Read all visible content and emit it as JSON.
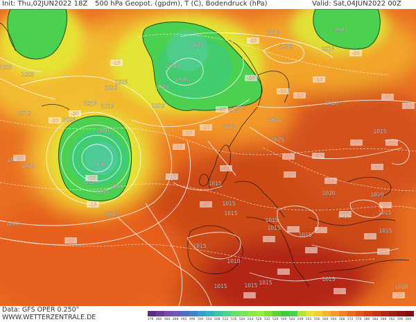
{
  "header": {
    "init": "Init: Thu,02JUN2022 18Z",
    "title": "500 hPa Geopot. (gpdm), T (C), Bodendruck (hPa)",
    "valid": "Valid: Sat,04JUN2022 00Z"
  },
  "footer": {
    "data": "Data: GFS OPER 0.250°",
    "site": "WWW.WETTERZENTRALE.DE"
  },
  "scale": {
    "labels": [
      "476",
      "480",
      "484",
      "488",
      "492",
      "496",
      "500",
      "504",
      "508",
      "512",
      "516",
      "520",
      "524",
      "528",
      "532",
      "536",
      "540",
      "544",
      "548",
      "552",
      "556",
      "560",
      "564",
      "568",
      "572",
      "576",
      "580",
      "584",
      "588",
      "592",
      "596",
      "600"
    ],
    "colors": [
      "#5a2d82",
      "#6a3a95",
      "#7a4ba8",
      "#6a5bb8",
      "#4f6fc4",
      "#3f86c9",
      "#35a0c7",
      "#35b5b9",
      "#3ec6a3",
      "#50d48a",
      "#66df6d",
      "#7ae458",
      "#8be84a",
      "#9aea44",
      "#7fe03a",
      "#5bd336",
      "#3fcc3a",
      "#4ad04f",
      "#b7e23b",
      "#e3e436",
      "#f1d132",
      "#f4b42e",
      "#f39a2a",
      "#ee8124",
      "#e76b1f",
      "#de561b",
      "#d24418",
      "#c33516",
      "#b22a17",
      "#a01f17",
      "#8e1716",
      "#7d1014"
    ]
  },
  "pressure_labels": [
    {
      "v": "1005"
    },
    {
      "v": "1005"
    },
    {
      "v": "1010"
    },
    {
      "v": "1015"
    },
    {
      "v": "1010"
    },
    {
      "v": "1005"
    },
    {
      "v": "1000"
    },
    {
      "v": "995"
    },
    {
      "v": "1010"
    },
    {
      "v": "990"
    },
    {
      "v": "1005"
    },
    {
      "v": "1010"
    },
    {
      "v": "1020"
    },
    {
      "v": "1025"
    },
    {
      "v": "1020"
    },
    {
      "v": "1015"
    },
    {
      "v": "1030"
    },
    {
      "v": "1035"
    },
    {
      "v": "1020"
    },
    {
      "v": "1020"
    },
    {
      "v": "1015"
    },
    {
      "v": "1010"
    },
    {
      "v": "1020"
    },
    {
      "v": "1025"
    },
    {
      "v": "1030"
    },
    {
      "v": "1020"
    },
    {
      "v": "1015"
    },
    {
      "v": "1020"
    },
    {
      "v": "1025"
    },
    {
      "v": "1015"
    },
    {
      "v": "1025"
    },
    {
      "v": "1020"
    },
    {
      "v": "1015"
    },
    {
      "v": "1015"
    },
    {
      "v": "1015"
    },
    {
      "v": "1015"
    },
    {
      "v": "1015"
    },
    {
      "v": "1020"
    },
    {
      "v": "1015"
    },
    {
      "v": "1010"
    },
    {
      "v": "1015"
    },
    {
      "v": "1015"
    },
    {
      "v": "1015"
    },
    {
      "v": "1010"
    },
    {
      "v": "1015"
    },
    {
      "v": "1015"
    },
    {
      "v": "1015"
    },
    {
      "v": "1015"
    },
    {
      "v": "1015"
    },
    {
      "v": "1010"
    },
    {
      "v": "1015"
    },
    {
      "v": "1010"
    }
  ],
  "temp_labels": [
    {
      "v": "-20"
    },
    {
      "v": "-20"
    },
    {
      "v": "-15"
    },
    {
      "v": "-20"
    },
    {
      "v": "-15"
    },
    {
      "v": "-20"
    },
    {
      "v": "-25"
    },
    {
      "v": "-20"
    },
    {
      "v": "-15"
    },
    {
      "v": "-10"
    },
    {
      "v": "-15"
    },
    {
      "v": "-20"
    },
    {
      "v": "-15"
    },
    {
      "v": "-15"
    },
    {
      "v": "-15"
    },
    {
      "v": "-15"
    },
    {
      "v": "-20"
    },
    {
      "v": "-10"
    },
    {
      "v": "-10"
    },
    {
      "v": "-10"
    },
    {
      "v": "-10"
    },
    {
      "v": "-10"
    },
    {
      "v": "-15"
    },
    {
      "v": "-15"
    },
    {
      "v": "-10"
    },
    {
      "v": "-10"
    },
    {
      "v": "-10"
    },
    {
      "v": "-15"
    },
    {
      "v": "-10"
    },
    {
      "v": "-10"
    },
    {
      "v": "-10"
    },
    {
      "v": "-10"
    },
    {
      "v": "-10"
    },
    {
      "v": "-15"
    },
    {
      "v": "-20"
    },
    {
      "v": "-20"
    },
    {
      "v": "-10"
    },
    {
      "v": "-10"
    },
    {
      "v": "-10"
    },
    {
      "v": "-10"
    },
    {
      "v": "-10"
    }
  ]
}
